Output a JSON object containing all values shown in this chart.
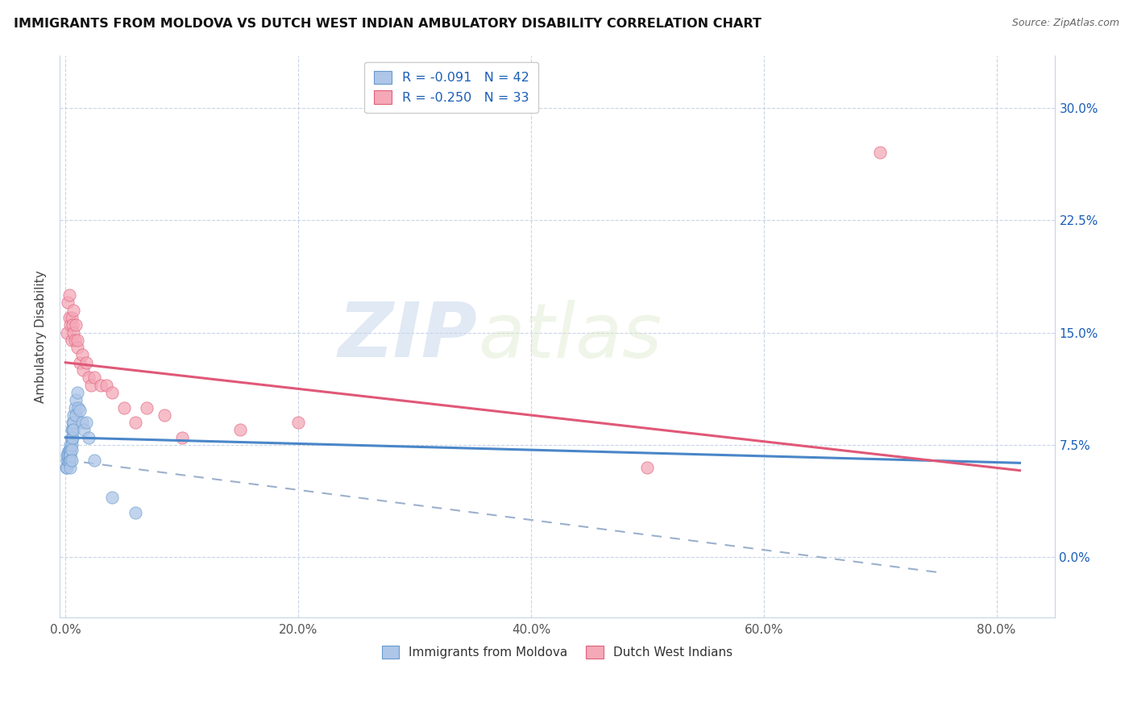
{
  "title": "IMMIGRANTS FROM MOLDOVA VS DUTCH WEST INDIAN AMBULATORY DISABILITY CORRELATION CHART",
  "source": "Source: ZipAtlas.com",
  "ylabel": "Ambulatory Disability",
  "legend_label1": "Immigrants from Moldova",
  "legend_label2": "Dutch West Indians",
  "r1": -0.091,
  "n1": 42,
  "r2": -0.25,
  "n2": 33,
  "color_blue_fill": "#aec6e8",
  "color_blue_edge": "#6699cc",
  "color_pink_fill": "#f4a8b8",
  "color_pink_edge": "#e0607a",
  "color_blue_line": "#4a86c8",
  "color_pink_line": "#e05878",
  "color_dashed": "#9bb0cc",
  "color_rvalue": "#1a5eb8",
  "watermark_zip": "ZIP",
  "watermark_atlas": "atlas",
  "xlim": [
    -0.005,
    0.85
  ],
  "ylim": [
    -0.04,
    0.335
  ],
  "xticks": [
    0.0,
    0.2,
    0.4,
    0.6,
    0.8
  ],
  "yticks": [
    0.0,
    0.075,
    0.15,
    0.225,
    0.3
  ],
  "moldova_x": [
    0.0005,
    0.001,
    0.001,
    0.0015,
    0.002,
    0.002,
    0.002,
    0.003,
    0.003,
    0.003,
    0.003,
    0.004,
    0.004,
    0.004,
    0.004,
    0.004,
    0.004,
    0.005,
    0.005,
    0.005,
    0.005,
    0.005,
    0.005,
    0.006,
    0.006,
    0.006,
    0.007,
    0.007,
    0.007,
    0.008,
    0.009,
    0.009,
    0.01,
    0.011,
    0.012,
    0.014,
    0.016,
    0.018,
    0.02,
    0.025,
    0.04,
    0.06
  ],
  "moldova_y": [
    0.06,
    0.065,
    0.06,
    0.068,
    0.065,
    0.07,
    0.068,
    0.072,
    0.068,
    0.065,
    0.063,
    0.075,
    0.072,
    0.07,
    0.068,
    0.065,
    0.06,
    0.085,
    0.08,
    0.078,
    0.075,
    0.072,
    0.065,
    0.09,
    0.085,
    0.08,
    0.095,
    0.09,
    0.085,
    0.1,
    0.105,
    0.095,
    0.11,
    0.1,
    0.098,
    0.09,
    0.085,
    0.09,
    0.08,
    0.065,
    0.04,
    0.03
  ],
  "dutch_x": [
    0.001,
    0.002,
    0.003,
    0.003,
    0.004,
    0.005,
    0.005,
    0.006,
    0.007,
    0.007,
    0.008,
    0.009,
    0.01,
    0.01,
    0.012,
    0.014,
    0.015,
    0.018,
    0.02,
    0.022,
    0.025,
    0.03,
    0.035,
    0.04,
    0.05,
    0.06,
    0.07,
    0.085,
    0.1,
    0.15,
    0.2,
    0.5,
    0.7
  ],
  "dutch_y": [
    0.15,
    0.17,
    0.16,
    0.175,
    0.155,
    0.16,
    0.145,
    0.155,
    0.165,
    0.15,
    0.145,
    0.155,
    0.14,
    0.145,
    0.13,
    0.135,
    0.125,
    0.13,
    0.12,
    0.115,
    0.12,
    0.115,
    0.115,
    0.11,
    0.1,
    0.09,
    0.1,
    0.095,
    0.08,
    0.085,
    0.09,
    0.06,
    0.27
  ],
  "mol_line_x0": 0.0,
  "mol_line_x1": 0.82,
  "mol_line_y0": 0.08,
  "mol_line_y1": 0.063,
  "dutch_line_x0": 0.0,
  "dutch_line_x1": 0.82,
  "dutch_line_y0": 0.13,
  "dutch_line_y1": 0.058,
  "dash_line_x0": 0.0,
  "dash_line_x1": 0.75,
  "dash_line_y0": 0.065,
  "dash_line_y1": -0.01
}
